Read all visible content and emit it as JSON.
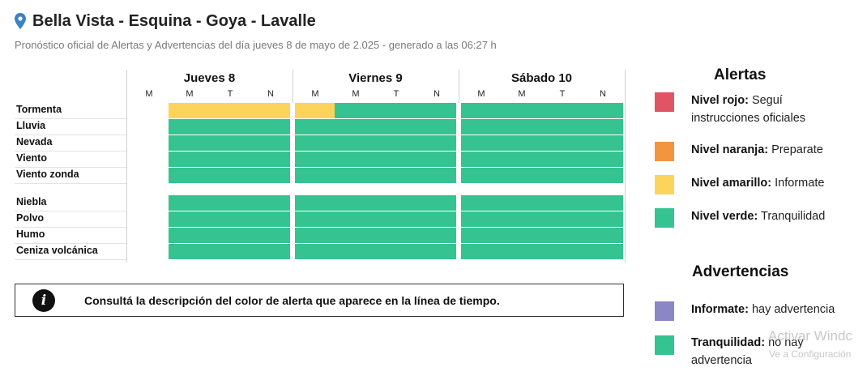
{
  "header": {
    "title": "Bella Vista - Esquina - Goya - Lavalle",
    "subtitle": "Pronóstico oficial de Alertas y Advertencias del día jueves 8 de mayo de 2.025 - generado a las 06:27 h"
  },
  "icons": {
    "location": "location-pin-icon",
    "info": "info-icon"
  },
  "days": [
    {
      "label": "Jueves 8",
      "periods": [
        "M",
        "M",
        "T",
        "N"
      ]
    },
    {
      "label": "Viernes 9",
      "periods": [
        "M",
        "M",
        "T",
        "N"
      ]
    },
    {
      "label": "Sábado 10",
      "periods": [
        "M",
        "M",
        "T",
        "N"
      ]
    }
  ],
  "rows": [
    {
      "label": "Tormenta",
      "levels": [
        "none",
        "yellow",
        "yellow",
        "yellow",
        "yellow",
        "green",
        "green",
        "green",
        "green",
        "green",
        "green",
        "green"
      ]
    },
    {
      "label": "Lluvia",
      "levels": [
        "none",
        "green",
        "green",
        "green",
        "green",
        "green",
        "green",
        "green",
        "green",
        "green",
        "green",
        "green"
      ]
    },
    {
      "label": "Nevada",
      "levels": [
        "none",
        "green",
        "green",
        "green",
        "green",
        "green",
        "green",
        "green",
        "green",
        "green",
        "green",
        "green"
      ]
    },
    {
      "label": "Viento",
      "levels": [
        "none",
        "green",
        "green",
        "green",
        "green",
        "green",
        "green",
        "green",
        "green",
        "green",
        "green",
        "green"
      ]
    },
    {
      "label": "Viento zonda",
      "levels": [
        "none",
        "green",
        "green",
        "green",
        "green",
        "green",
        "green",
        "green",
        "green",
        "green",
        "green",
        "green"
      ]
    },
    {
      "label": "Niebla",
      "levels": [
        "none",
        "green",
        "green",
        "green",
        "green",
        "green",
        "green",
        "green",
        "green",
        "green",
        "green",
        "green"
      ]
    },
    {
      "label": "Polvo",
      "levels": [
        "none",
        "green",
        "green",
        "green",
        "green",
        "green",
        "green",
        "green",
        "green",
        "green",
        "green",
        "green"
      ]
    },
    {
      "label": "Humo",
      "levels": [
        "none",
        "green",
        "green",
        "green",
        "green",
        "green",
        "green",
        "green",
        "green",
        "green",
        "green",
        "green"
      ]
    },
    {
      "label": "Ceniza volcánica",
      "levels": [
        "none",
        "green",
        "green",
        "green",
        "green",
        "green",
        "green",
        "green",
        "green",
        "green",
        "green",
        "green"
      ]
    }
  ],
  "info_box": {
    "text": "Consultá la descripción del color de alerta que aparece en la línea de tiempo.",
    "icon_glyph": "i"
  },
  "legend": {
    "alertas_title": "Alertas",
    "alertas": [
      {
        "name": "Nivel rojo:",
        "desc": "Seguí",
        "desc2": "instrucciones oficiales",
        "color": "#e05566"
      },
      {
        "name": "Nivel naranja:",
        "desc": "Preparate",
        "color": "#f3953f"
      },
      {
        "name": "Nivel amarillo:",
        "desc": "Informate",
        "color": "#fdd45b"
      },
      {
        "name": "Nivel verde:",
        "desc": "Tranquilidad",
        "color": "#34c391"
      }
    ],
    "advertencias_title": "Advertencias",
    "advertencias": [
      {
        "name": "Informate:",
        "desc": "hay advertencia",
        "color": "#8b86c6"
      },
      {
        "name": "Tranquilidad:",
        "desc": "no hay",
        "desc2": "advertencia",
        "color": "#34c391"
      }
    ]
  },
  "watermark": {
    "line1": "Activar Windc",
    "line2": "Ve a Configuración"
  },
  "colors": {
    "green": "#34c391",
    "yellow": "#fdd45b"
  }
}
